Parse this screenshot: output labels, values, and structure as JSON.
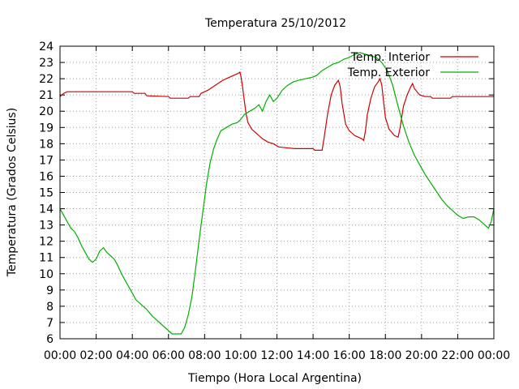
{
  "chart_data": {
    "type": "line",
    "title": "Temperatura 25/10/2012",
    "xlabel": "Tiempo (Hora Local Argentina)",
    "ylabel": "Temperatura (Grados Celsius)",
    "xlim": [
      0,
      24
    ],
    "ylim": [
      6,
      24
    ],
    "grid": true,
    "legend_position": "top-right",
    "x_tick_labels": [
      "00:00",
      "02:00",
      "04:00",
      "06:00",
      "08:00",
      "10:00",
      "12:00",
      "14:00",
      "16:00",
      "18:00",
      "20:00",
      "22:00",
      "00:00"
    ],
    "y_ticks": [
      6,
      7,
      8,
      9,
      10,
      11,
      12,
      13,
      14,
      15,
      16,
      17,
      18,
      19,
      20,
      21,
      22,
      23,
      24
    ],
    "series": [
      {
        "name": "Temp. Interior",
        "color": "#d00000",
        "points": [
          [
            0.0,
            20.9
          ],
          [
            0.2,
            21.1
          ],
          [
            0.4,
            21.2
          ],
          [
            2.0,
            21.2
          ],
          [
            4.0,
            21.2
          ],
          [
            4.1,
            21.1
          ],
          [
            4.7,
            21.1
          ],
          [
            4.8,
            20.95
          ],
          [
            6.0,
            20.9
          ],
          [
            6.1,
            20.8
          ],
          [
            7.1,
            20.8
          ],
          [
            7.2,
            20.9
          ],
          [
            7.7,
            20.9
          ],
          [
            7.8,
            21.1
          ],
          [
            8.2,
            21.3
          ],
          [
            8.6,
            21.6
          ],
          [
            9.0,
            21.9
          ],
          [
            9.4,
            22.1
          ],
          [
            9.8,
            22.3
          ],
          [
            9.95,
            22.4
          ],
          [
            10.0,
            22.2
          ],
          [
            10.1,
            21.5
          ],
          [
            10.2,
            20.6
          ],
          [
            10.3,
            19.8
          ],
          [
            10.4,
            19.3
          ],
          [
            10.6,
            18.9
          ],
          [
            10.9,
            18.6
          ],
          [
            11.2,
            18.3
          ],
          [
            11.5,
            18.1
          ],
          [
            11.8,
            18.0
          ],
          [
            12.1,
            17.8
          ],
          [
            12.5,
            17.75
          ],
          [
            13.0,
            17.7
          ],
          [
            14.0,
            17.7
          ],
          [
            14.1,
            17.6
          ],
          [
            14.5,
            17.6
          ],
          [
            14.6,
            18.3
          ],
          [
            14.8,
            19.8
          ],
          [
            15.0,
            21.0
          ],
          [
            15.2,
            21.6
          ],
          [
            15.4,
            21.9
          ],
          [
            15.5,
            21.5
          ],
          [
            15.6,
            20.5
          ],
          [
            15.8,
            19.2
          ],
          [
            16.0,
            18.8
          ],
          [
            16.3,
            18.5
          ],
          [
            16.7,
            18.3
          ],
          [
            16.8,
            18.2
          ],
          [
            16.9,
            18.8
          ],
          [
            17.0,
            19.8
          ],
          [
            17.2,
            20.8
          ],
          [
            17.4,
            21.5
          ],
          [
            17.6,
            21.8
          ],
          [
            17.7,
            22.0
          ],
          [
            17.8,
            21.6
          ],
          [
            17.9,
            20.6
          ],
          [
            18.0,
            19.6
          ],
          [
            18.2,
            18.9
          ],
          [
            18.5,
            18.5
          ],
          [
            18.7,
            18.4
          ],
          [
            18.8,
            18.9
          ],
          [
            19.0,
            20.3
          ],
          [
            19.2,
            21.0
          ],
          [
            19.4,
            21.5
          ],
          [
            19.5,
            21.7
          ],
          [
            19.6,
            21.4
          ],
          [
            19.9,
            21.0
          ],
          [
            20.2,
            20.9
          ],
          [
            20.5,
            20.9
          ],
          [
            20.6,
            20.8
          ],
          [
            21.6,
            20.8
          ],
          [
            21.7,
            20.9
          ],
          [
            24.0,
            20.9
          ]
        ]
      },
      {
        "name": "Temp. Exterior",
        "color": "#00b000",
        "points": [
          [
            0.0,
            14.0
          ],
          [
            0.2,
            13.6
          ],
          [
            0.4,
            13.2
          ],
          [
            0.6,
            12.8
          ],
          [
            0.8,
            12.6
          ],
          [
            1.0,
            12.2
          ],
          [
            1.2,
            11.7
          ],
          [
            1.4,
            11.3
          ],
          [
            1.6,
            10.9
          ],
          [
            1.8,
            10.7
          ],
          [
            2.0,
            10.9
          ],
          [
            2.2,
            11.4
          ],
          [
            2.4,
            11.6
          ],
          [
            2.6,
            11.3
          ],
          [
            2.8,
            11.1
          ],
          [
            3.0,
            10.9
          ],
          [
            3.2,
            10.5
          ],
          [
            3.4,
            10.0
          ],
          [
            3.6,
            9.6
          ],
          [
            3.8,
            9.2
          ],
          [
            4.0,
            8.8
          ],
          [
            4.2,
            8.4
          ],
          [
            4.5,
            8.1
          ],
          [
            4.8,
            7.8
          ],
          [
            5.1,
            7.4
          ],
          [
            5.4,
            7.1
          ],
          [
            5.7,
            6.8
          ],
          [
            6.0,
            6.5
          ],
          [
            6.2,
            6.3
          ],
          [
            6.5,
            6.3
          ],
          [
            6.7,
            6.3
          ],
          [
            6.9,
            6.7
          ],
          [
            7.1,
            7.5
          ],
          [
            7.3,
            8.6
          ],
          [
            7.5,
            10.3
          ],
          [
            7.7,
            12.1
          ],
          [
            7.9,
            13.8
          ],
          [
            8.1,
            15.5
          ],
          [
            8.3,
            16.8
          ],
          [
            8.5,
            17.7
          ],
          [
            8.7,
            18.3
          ],
          [
            8.9,
            18.8
          ],
          [
            9.2,
            19.0
          ],
          [
            9.5,
            19.2
          ],
          [
            9.8,
            19.3
          ],
          [
            10.0,
            19.5
          ],
          [
            10.2,
            19.8
          ],
          [
            10.5,
            20.0
          ],
          [
            10.8,
            20.2
          ],
          [
            11.0,
            20.4
          ],
          [
            11.2,
            20.0
          ],
          [
            11.4,
            20.6
          ],
          [
            11.6,
            21.0
          ],
          [
            11.8,
            20.6
          ],
          [
            12.0,
            20.8
          ],
          [
            12.3,
            21.3
          ],
          [
            12.6,
            21.6
          ],
          [
            12.9,
            21.8
          ],
          [
            13.2,
            21.9
          ],
          [
            13.6,
            22.0
          ],
          [
            14.0,
            22.1
          ],
          [
            14.2,
            22.2
          ],
          [
            14.5,
            22.5
          ],
          [
            14.8,
            22.7
          ],
          [
            15.1,
            22.9
          ],
          [
            15.4,
            23.0
          ],
          [
            15.7,
            23.2
          ],
          [
            16.0,
            23.3
          ],
          [
            16.3,
            23.5
          ],
          [
            16.6,
            23.6
          ],
          [
            16.9,
            23.5
          ],
          [
            17.2,
            23.4
          ],
          [
            17.5,
            23.3
          ],
          [
            17.8,
            23.0
          ],
          [
            18.1,
            22.5
          ],
          [
            18.4,
            21.6
          ],
          [
            18.7,
            20.3
          ],
          [
            19.0,
            19.1
          ],
          [
            19.3,
            18.1
          ],
          [
            19.6,
            17.3
          ],
          [
            19.9,
            16.7
          ],
          [
            20.2,
            16.1
          ],
          [
            20.5,
            15.6
          ],
          [
            20.8,
            15.1
          ],
          [
            21.1,
            14.6
          ],
          [
            21.4,
            14.2
          ],
          [
            21.7,
            13.9
          ],
          [
            22.0,
            13.6
          ],
          [
            22.3,
            13.4
          ],
          [
            22.6,
            13.5
          ],
          [
            22.9,
            13.5
          ],
          [
            23.2,
            13.3
          ],
          [
            23.5,
            13.0
          ],
          [
            23.7,
            12.8
          ],
          [
            23.85,
            13.2
          ],
          [
            24.0,
            14.0
          ]
        ]
      }
    ]
  }
}
